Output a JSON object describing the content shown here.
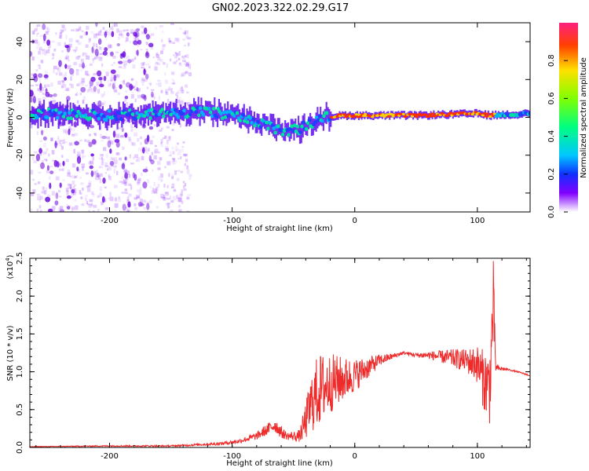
{
  "chart_data": [
    {
      "type": "heatmap",
      "title": "GN02.2023.322.02.29.G17",
      "xlabel": "Height of straight line (km)",
      "ylabel": "Frequency (Hz)",
      "xlim": [
        -265,
        143
      ],
      "ylim": [
        -50,
        50
      ],
      "xticks": [
        "-200",
        "-100",
        "0",
        "100"
      ],
      "yticks": [
        "-40",
        "-20",
        "0",
        "20",
        "40"
      ],
      "colorbar": {
        "label": "Normalized spectral amplitude",
        "range": [
          0,
          1
        ],
        "ticks": [
          "0.0",
          "0.2",
          "0.4",
          "0.6",
          "0.8"
        ]
      },
      "trace": {
        "x": [
          -265,
          -200,
          -150,
          -120,
          -100,
          -80,
          -65,
          -55,
          -45,
          -35,
          -25,
          -10,
          0,
          50,
          100,
          110,
          143
        ],
        "y": [
          2,
          1,
          2,
          3,
          1,
          -3,
          -6,
          -7,
          -6,
          -3,
          0,
          1,
          1,
          1,
          2,
          1,
          2
        ]
      },
      "scatter_region_x": [
        -265,
        -135
      ],
      "strong_segment_x": [
        -20,
        115
      ]
    },
    {
      "type": "line",
      "xlabel": "Height of straight line (km)",
      "ylabel": "SNR (10 * v/v)",
      "yscale_label": "(x10",
      "yscale_exp": "4",
      "xlim": [
        -265,
        143
      ],
      "ylim": [
        0,
        2.5
      ],
      "xticks": [
        "-200",
        "-100",
        "0",
        "100"
      ],
      "yticks": [
        "0.0",
        "0.5",
        "1.0",
        "1.5",
        "2.0",
        "2.5"
      ],
      "series": [
        {
          "color": "#ee2a2a",
          "x": [
            -265,
            -200,
            -150,
            -110,
            -95,
            -80,
            -70,
            -65,
            -60,
            -55,
            -45,
            -40,
            -35,
            -30,
            -25,
            -20,
            -10,
            0,
            10,
            20,
            30,
            40,
            50,
            60,
            70,
            80,
            90,
            100,
            105,
            110,
            113,
            115,
            125,
            135,
            143
          ],
          "y": [
            0.01,
            0.02,
            0.02,
            0.05,
            0.08,
            0.15,
            0.25,
            0.3,
            0.2,
            0.15,
            0.15,
            0.35,
            0.6,
            0.75,
            0.8,
            0.85,
            0.9,
            0.95,
            1.05,
            1.15,
            1.2,
            1.25,
            1.22,
            1.22,
            1.2,
            1.18,
            1.15,
            1.1,
            0.9,
            0.8,
            1.9,
            1.05,
            1.03,
            0.99,
            0.95
          ],
          "noise_amplitude": [
            0.003,
            0.008,
            0.01,
            0.02,
            0.03,
            0.05,
            0.08,
            0.1,
            0.08,
            0.05,
            0.08,
            0.25,
            0.4,
            0.5,
            0.45,
            0.4,
            0.3,
            0.22,
            0.15,
            0.08,
            0.04,
            0.02,
            0.03,
            0.05,
            0.08,
            0.12,
            0.15,
            0.25,
            0.4,
            0.5,
            0.6,
            0.05,
            0.01,
            0.01,
            0.01
          ]
        }
      ]
    }
  ]
}
